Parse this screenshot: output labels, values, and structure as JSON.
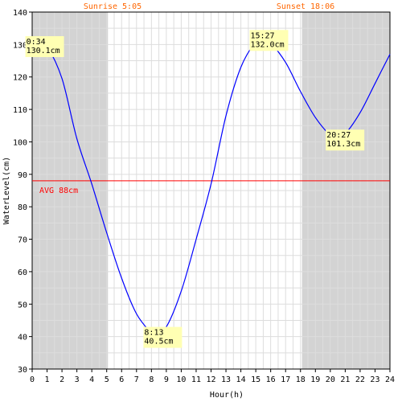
{
  "chart_data": {
    "type": "line",
    "xlabel": "Hour(h)",
    "ylabel": "WaterLevel(cm)",
    "xlim": [
      0,
      24
    ],
    "ylim": [
      30,
      140
    ],
    "x_ticks": [
      "0",
      "1",
      "2",
      "3",
      "4",
      "5",
      "6",
      "7",
      "8",
      "9",
      "10",
      "11",
      "12",
      "13",
      "14",
      "15",
      "16",
      "17",
      "18",
      "19",
      "20",
      "21",
      "22",
      "23",
      "24"
    ],
    "y_ticks": [
      "30",
      "40",
      "50",
      "60",
      "70",
      "80",
      "90",
      "100",
      "110",
      "120",
      "130",
      "140"
    ],
    "grid": true,
    "sunrise": {
      "label": "Sunrise 5:05",
      "hour": 5.083
    },
    "sunset": {
      "label": "Sunset 18:06",
      "hour": 18.1
    },
    "night_shading": [
      [
        0,
        5.083
      ],
      [
        18.1,
        24
      ]
    ],
    "average": {
      "label": "AVG 88cm",
      "value": 88
    },
    "series": [
      {
        "points": [
          [
            0,
            127.8
          ],
          [
            0.57,
            130.1
          ],
          [
            1,
            129.5
          ],
          [
            2,
            119.5
          ],
          [
            3,
            101
          ],
          [
            4,
            87
          ],
          [
            5,
            72
          ],
          [
            6,
            58
          ],
          [
            7,
            47
          ],
          [
            8,
            41
          ],
          [
            8.22,
            40.5
          ],
          [
            9,
            43
          ],
          [
            10,
            54
          ],
          [
            11,
            70
          ],
          [
            12,
            87
          ],
          [
            13,
            108
          ],
          [
            14,
            123
          ],
          [
            15,
            131
          ],
          [
            15.45,
            132.0
          ],
          [
            16,
            130.5
          ],
          [
            17,
            124.5
          ],
          [
            18,
            115.5
          ],
          [
            19,
            107.5
          ],
          [
            20,
            102
          ],
          [
            20.45,
            101.3
          ],
          [
            21,
            102.5
          ],
          [
            22,
            109
          ],
          [
            23,
            118
          ],
          [
            24,
            127
          ]
        ]
      }
    ],
    "annotations": [
      {
        "time": "0:34",
        "value": "130.1cm",
        "hour": 0.57,
        "level": 130.1
      },
      {
        "time": "8:13",
        "value": "40.5cm",
        "hour": 8.22,
        "level": 40.5
      },
      {
        "time": "15:27",
        "value": "132.0cm",
        "hour": 15.45,
        "level": 132.0
      },
      {
        "time": "20:27",
        "value": "101.3cm",
        "hour": 20.45,
        "level": 101.3
      }
    ],
    "colors": {
      "line": "#0000ff",
      "avg_line": "#ff0000",
      "night": "#d3d3d3",
      "grid": "#dddddd",
      "annotation_bg": "#ffffb3",
      "sun_text": "#ff6600"
    }
  }
}
